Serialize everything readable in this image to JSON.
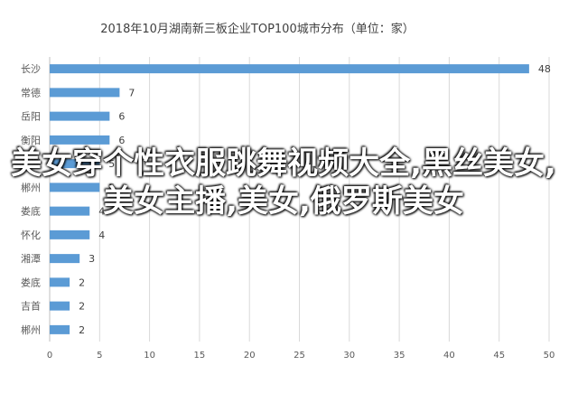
{
  "chart_data": {
    "type": "bar",
    "orientation": "horizontal",
    "title": "2018年10月湖南新三板企业TOP100城市分布（单位：家）",
    "xlabel": "",
    "ylabel": "",
    "xlim": [
      0,
      50
    ],
    "xticks": [
      "0",
      "5",
      "10",
      "15",
      "20",
      "25",
      "30",
      "35",
      "40",
      "45",
      "50"
    ],
    "grid": true,
    "legend": "none",
    "bar_color": "#5b9bd5",
    "categories": [
      "长沙",
      "常德",
      "岳阳",
      "衡阳",
      "株洲",
      "郴州",
      "娄底",
      "怀化",
      "湘潭",
      "娄底",
      "吉首",
      "郴州"
    ],
    "values": [
      48,
      7,
      6,
      6,
      5,
      5,
      4,
      4,
      3,
      2,
      2,
      2
    ]
  },
  "overlay_text": "美女穿个性衣服跳舞视频大全,黑丝美女,美女主播,美女,俄罗斯美女"
}
